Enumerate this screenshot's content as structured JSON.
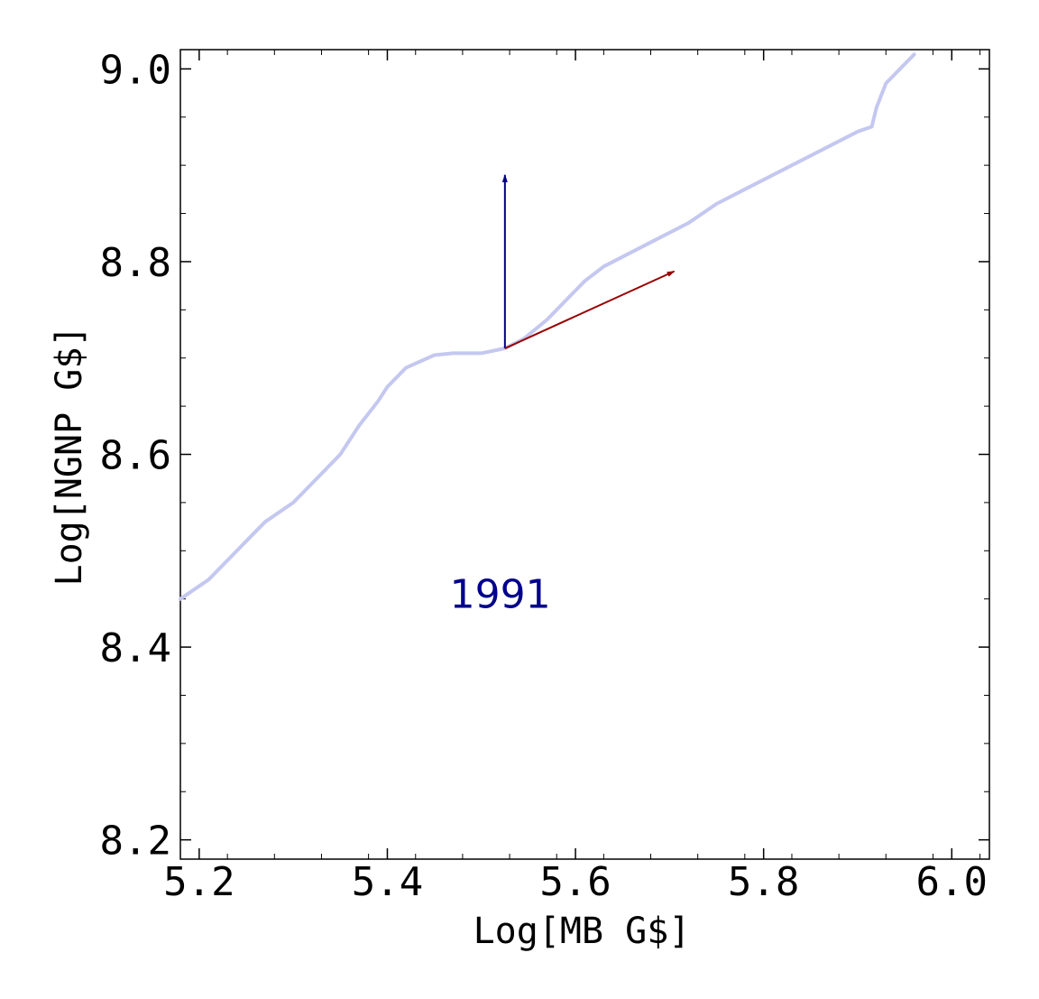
{
  "chart_data": {
    "type": "line",
    "xlabel": "Log[MB G$]",
    "ylabel": "Log[NGNP G$]",
    "xlim": [
      5.18,
      6.04
    ],
    "ylim": [
      8.18,
      9.02
    ],
    "x_ticks": [
      5.2,
      5.4,
      5.6,
      5.8,
      6.0
    ],
    "x_tick_labels": [
      "5.2",
      "5.4",
      "5.6",
      "5.8",
      "6.0"
    ],
    "y_ticks": [
      8.2,
      8.4,
      8.6,
      8.8,
      9.0
    ],
    "y_tick_labels": [
      "8.2",
      "8.4",
      "8.6",
      "8.8",
      "9.0"
    ],
    "grid": false,
    "series": [
      {
        "color": "#c4c8f0",
        "x": [
          5.18,
          5.21,
          5.24,
          5.27,
          5.3,
          5.33,
          5.35,
          5.37,
          5.39,
          5.4,
          5.42,
          5.45,
          5.47,
          5.5,
          5.525,
          5.545,
          5.57,
          5.59,
          5.61,
          5.63,
          5.66,
          5.69,
          5.72,
          5.75,
          5.78,
          5.81,
          5.84,
          5.87,
          5.9,
          5.915,
          5.92,
          5.93,
          5.95,
          5.96
        ],
        "y": [
          8.45,
          8.47,
          8.5,
          8.53,
          8.55,
          8.58,
          8.6,
          8.63,
          8.655,
          8.67,
          8.69,
          8.703,
          8.705,
          8.705,
          8.71,
          8.72,
          8.74,
          8.76,
          8.78,
          8.795,
          8.81,
          8.825,
          8.84,
          8.86,
          8.875,
          8.89,
          8.905,
          8.92,
          8.935,
          8.94,
          8.96,
          8.985,
          9.005,
          9.015
        ]
      }
    ],
    "vectors": [
      {
        "color": "#000080",
        "from": [
          5.525,
          8.71
        ],
        "to": [
          5.525,
          8.89
        ]
      },
      {
        "color": "#990000",
        "from": [
          5.525,
          8.71
        ],
        "to": [
          5.705,
          8.79
        ]
      }
    ],
    "annotations": [
      {
        "text": "1991",
        "color": "#00008b",
        "x": 5.52,
        "y": 8.455
      }
    ]
  }
}
